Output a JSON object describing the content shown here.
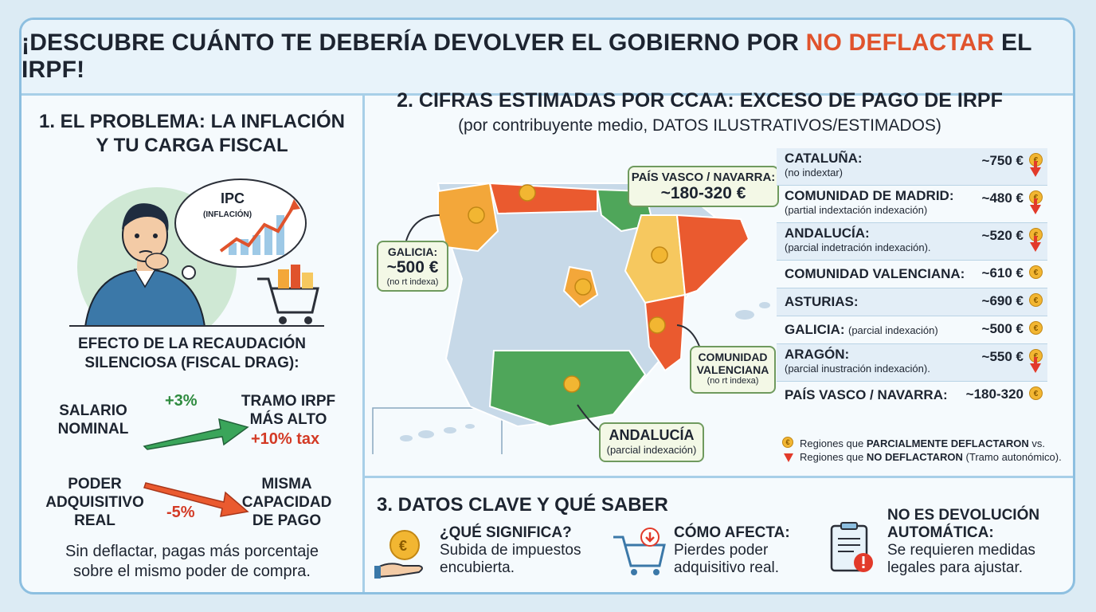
{
  "header": {
    "title_pre": "¡DESCUBRE CUÁNTO TE DEBERÍA DEVOLVER EL GOBIERNO POR ",
    "title_highlight": "NO DEFLACTAR",
    "title_post": " EL IRPF!"
  },
  "panel1": {
    "title_line1": "1. EL PROBLEMA: LA INFLACIÓN",
    "title_line2": "Y TU CARGA FISCAL",
    "bubble_title": "IPC",
    "bubble_sub": "(INFLACIÓN)",
    "effect_line1": "EFECTO DE LA RECAUDACIÓN",
    "effect_line2": "SILENCIOSA (FISCAL DRAG):",
    "salario_line1": "SALARIO",
    "salario_line2": "NOMINAL",
    "pct_up": "+3%",
    "tramo_line1": "TRAMO IRPF",
    "tramo_line2": "MÁS ALTO",
    "tax": "+10% tax",
    "poder_line1": "PODER",
    "poder_line2": "ADQUISITIVO",
    "poder_line3": "REAL",
    "pct_down": "-5%",
    "misma_line1": "MISMA",
    "misma_line2": "CAPACIDAD",
    "misma_line3": "DE PAGO",
    "footer_line1": "Sin deflactar, pagas más porcentaje",
    "footer_line2": "sobre el mismo poder de compra."
  },
  "panel2": {
    "title": "2. CIFRAS ESTIMADAS POR CCAA: EXCESO DE PAGO DE IRPF",
    "subtitle": "(por contribuyente medio, DATOS ILUSTRATIVOS/ESTIMADOS)",
    "callouts": {
      "pv_title": "PAÍS VASCO / NAVARRA:",
      "pv_value": "~180-320 €",
      "gal_title": "GALICIA:",
      "gal_value": "~500 €",
      "gal_note": "(no rt indexa)",
      "val_title1": "COMUNIDAD",
      "val_title2": "VALENCIANA",
      "val_note": "(no rt indexa)",
      "and_title": "ANDALUCÍA",
      "and_note": "(parcial indexación)"
    },
    "rows": [
      {
        "region": "CATALUÑA:",
        "note": "(no indextar)",
        "value": "~750 €",
        "down": true
      },
      {
        "region": "COMUNIDAD DE MADRID:",
        "note": "(partial indextación indexación)",
        "value": "~480 €",
        "down": true
      },
      {
        "region": "ANDALUCÍA:",
        "note": "(parcial indetración indexación).",
        "value": "~520 €",
        "down": true
      },
      {
        "region": "COMUNIDAD VALENCIANA:",
        "note": "",
        "value": "~610 €",
        "down": false
      },
      {
        "region": "ASTURIAS:",
        "note": "",
        "value": "~690 €",
        "down": false
      },
      {
        "region": "GALICIA:",
        "note_inline": "(parcial indexación)",
        "value": "~500 €",
        "down": false
      },
      {
        "region": "ARAGÓN:",
        "note": "(parcial inustración indexación).",
        "value": "~550 €",
        "down": true
      },
      {
        "region": "PAÍS VASCO / NAVARRA:",
        "note": "",
        "value": "~180-320",
        "down": false
      }
    ],
    "legend": {
      "l1_pre": "Regiones que ",
      "l1_bold": "PARCIALMENTE DEFLACTARON",
      "l1_post": " vs.",
      "l2_pre": "Regiones que ",
      "l2_bold": "NO DEFLACTARON",
      "l2_post": " (Tramo autonómico)."
    },
    "colors": {
      "orange": "#f3a73a",
      "red": "#ea5a2f",
      "yellow": "#f6c85f",
      "green": "#4fa65a",
      "blue": "#c7d9e8"
    }
  },
  "panel3": {
    "title": "3. DATOS CLAVE Y QUÉ SABER",
    "items": [
      {
        "title": "¿QUÉ SIGNIFICA?",
        "desc1": "Subida de impuestos",
        "desc2": "encubierta."
      },
      {
        "title": "CÓMO AFECTA:",
        "desc1": "Pierdes poder",
        "desc2": "adquisitivo real."
      },
      {
        "title1": "NO ES DEVOLUCIÓN",
        "title2": "AUTOMÁTICA:",
        "desc1": "Se requieren medidas",
        "desc2": "legales para ajustar."
      }
    ]
  }
}
